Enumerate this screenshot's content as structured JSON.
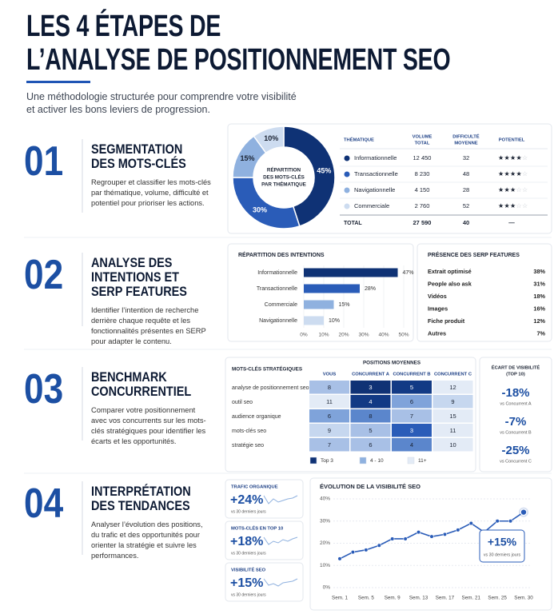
{
  "header": {
    "title_lines": [
      "LES 4 ÉTAPES DE",
      "L’ANALYSE DE POSITIONNEMENT SEO"
    ],
    "subtitle_lines": [
      "Une méthodologie structurée pour comprendre votre visibilité",
      "et activer les bons leviers de progression."
    ]
  },
  "steps": [
    {
      "number": "01",
      "heading_lines": [
        "SEGMENTATION",
        "DES MOTS-CLÉS"
      ],
      "text": "Regrouper et classifier les mots-clés par thématique, volume, difficulté et potentiel pour prioriser les actions."
    },
    {
      "number": "02",
      "heading_lines": [
        "ANALYSE DES",
        "INTENTIONS ET",
        "SERP FEATURES"
      ],
      "text": "Identifier l’intention de recherche derrière chaque requête et les fonctionnalités présentes en SERP pour adapter le contenu."
    },
    {
      "number": "03",
      "heading_lines": [
        "BENCHMARK",
        "CONCURRENTIEL"
      ],
      "text": "Comparer votre positionnement avec vos concurrents sur les mots-clés stratégiques pour identifier les écarts et les opportunités."
    },
    {
      "number": "04",
      "heading_lines": [
        "INTERPRÉTATION",
        "DES TENDANCES"
      ],
      "text": "Analyser l’évolution des positions, du trafic et des opportunités pour orienter la stratégie et suivre les performances."
    }
  ],
  "donut": {
    "type": "pie",
    "center_lines": [
      "RÉPARTITION",
      "DES MOTS-CLÉS",
      "PAR THÉMATIQUE"
    ],
    "values": [
      45,
      30,
      15,
      10
    ],
    "value_labels": [
      "45%",
      "30%",
      "15%",
      "10%"
    ],
    "colors": [
      "#0f3275",
      "#2a5cb8",
      "#8fb1df",
      "#cddcf0"
    ]
  },
  "theme_table": {
    "headers": [
      [
        "THÉMATIQUE"
      ],
      [
        "VOLUME",
        "TOTAL"
      ],
      [
        "DIFFICULTÉ",
        "MOYENNE"
      ],
      [
        "POTENTIEL"
      ]
    ],
    "rows": [
      {
        "name": "Informationnelle",
        "volume": "12 450",
        "difficulty": 32,
        "potential": 4
      },
      {
        "name": "Transactionnelle",
        "volume": "8 230",
        "difficulty": 48,
        "potential": 4
      },
      {
        "name": "Navigationnelle",
        "volume": "4 150",
        "difficulty": 28,
        "potential": 3
      },
      {
        "name": "Commerciale",
        "volume": "2 760",
        "difficulty": 52,
        "potential": 3
      }
    ],
    "total": {
      "name": "TOTAL",
      "volume": "27 590",
      "difficulty": 40,
      "potential": "—"
    }
  },
  "intents_chart": {
    "type": "bar",
    "title": "RÉPARTITION DES INTENTIONS",
    "categories": [
      "Informationnelle",
      "Transactionnelle",
      "Commerciale",
      "Navigationnelle"
    ],
    "values": [
      47,
      28,
      15,
      10
    ],
    "value_labels": [
      "47%",
      "28%",
      "15%",
      "10%"
    ],
    "colors": [
      "#0f3275",
      "#2a5cb8",
      "#8fb1df",
      "#cddcf0"
    ],
    "xlim": [
      0,
      50
    ],
    "xticks": [
      {
        "value": 0,
        "label": "0%"
      },
      {
        "value": 10,
        "label": "10%"
      },
      {
        "value": 20,
        "label": "20%"
      },
      {
        "value": 30,
        "label": "30%"
      },
      {
        "value": 40,
        "label": "40%"
      },
      {
        "value": 50,
        "label": "50%"
      }
    ]
  },
  "serp_features": {
    "title": "PRÉSENCE DES SERP FEATURES",
    "rows": [
      {
        "name": "Extrait optimisé",
        "value": "38%"
      },
      {
        "name": "People also ask",
        "value": "31%"
      },
      {
        "name": "Vidéos",
        "value": "18%"
      },
      {
        "name": "Images",
        "value": "16%"
      },
      {
        "name": "Fiche produit",
        "value": "12%"
      },
      {
        "name": "Autres",
        "value": "7%"
      }
    ]
  },
  "benchmark": {
    "type": "heatmap",
    "row_header": "MOTS-CLÉS STRATÉGIQUES",
    "title": "POSITIONS MOYENNES",
    "columns": [
      "VOUS",
      "CONCURRENT A",
      "CONCURRENT B",
      "CONCURRENT C"
    ],
    "rows": [
      "analyse de positionnement seo",
      "outil seo",
      "audience organique",
      "mots-clés seo",
      "stratégie seo"
    ],
    "values": [
      [
        8,
        3,
        5,
        12
      ],
      [
        11,
        4,
        6,
        9
      ],
      [
        6,
        8,
        7,
        15
      ],
      [
        9,
        5,
        3,
        11
      ],
      [
        7,
        6,
        4,
        10
      ]
    ],
    "colors": [
      [
        "#a8c0e6",
        "#0f3275",
        "#123a85",
        "#e3ebf6"
      ],
      [
        "#e3ebf6",
        "#123a85",
        "#7fa3da",
        "#c6d7ef"
      ],
      [
        "#7fa3da",
        "#5b86cc",
        "#a8c0e6",
        "#e3ebf6"
      ],
      [
        "#c6d7ef",
        "#a8c0e6",
        "#2a5cb8",
        "#e3ebf6"
      ],
      [
        "#a8c0e6",
        "#a8c0e6",
        "#5b86cc",
        "#e3ebf6"
      ]
    ],
    "legend": [
      {
        "label": "Top 3",
        "color": "#0f3275"
      },
      {
        "label": "4 - 10",
        "color": "#8fb1df"
      },
      {
        "label": "11+",
        "color": "#e3ebf6"
      }
    ]
  },
  "visibility_gap": {
    "title_lines": [
      "ÉCART DE VISIBILITÉ",
      "(TOP 10)"
    ],
    "items": [
      {
        "value": "-18%",
        "label": "vs Concurrent A"
      },
      {
        "value": "-7%",
        "label": "vs Concurrent B"
      },
      {
        "value": "-25%",
        "label": "vs Concurrent C"
      }
    ]
  },
  "kpis": [
    {
      "title": "TRAFIC ORGANIQUE",
      "value": "+24%",
      "note": "vs 30 derniers jours"
    },
    {
      "title": "MOTS-CLÉS EN TOP 10",
      "value": "+18%",
      "note": "vs 30 derniers jours"
    },
    {
      "title": "VISIBILITÉ SEO",
      "value": "+15%",
      "note": "vs 30 derniers jours"
    }
  ],
  "visibility_chart": {
    "type": "line",
    "title": "ÉVOLUTION DE LA VISIBILITÉ SEO",
    "categories": [
      "Sem. 1",
      null,
      "Sem. 5",
      null,
      "Sem. 9",
      null,
      "Sem. 13",
      null,
      "Sem. 17",
      null,
      "Sem. 21",
      null,
      "Sem. 25",
      null,
      "Sem. 30"
    ],
    "values": [
      13,
      16,
      17,
      19,
      22,
      22,
      25,
      23,
      24,
      26,
      29,
      25,
      30,
      30,
      34
    ],
    "color": "#2a5cb8",
    "ylim": [
      0,
      40
    ],
    "yticks": [
      {
        "value": 0,
        "label": "0%"
      },
      {
        "value": 10,
        "label": "10%"
      },
      {
        "value": 20,
        "label": "20%"
      },
      {
        "value": 30,
        "label": "30%"
      },
      {
        "value": 40,
        "label": "40%"
      }
    ],
    "grid": true,
    "annotation": {
      "value": "+15%",
      "note": "vs 30 derniers jours"
    }
  }
}
